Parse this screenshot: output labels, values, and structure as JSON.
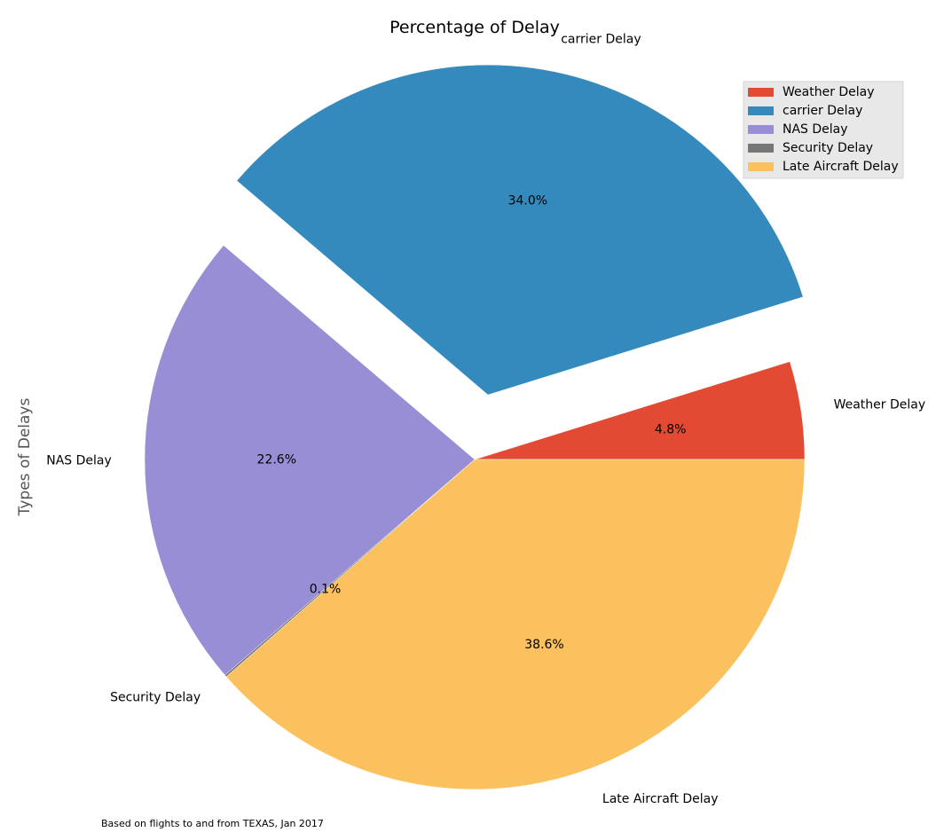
{
  "chart_data": {
    "type": "pie",
    "title": "Percentage of Delay",
    "ylabel": "Types of Delays",
    "footnote": "Based on flights to and from TEXAS, Jan 2017",
    "start_angle_deg": 0,
    "direction": "counterclockwise",
    "legend_position": "top-right",
    "slices": [
      {
        "label": "Weather Delay",
        "value": 4.8,
        "pct_label": "4.8%",
        "color": "#E24A33",
        "explode": false
      },
      {
        "label": "carrier Delay",
        "value": 34.0,
        "pct_label": "34.0%",
        "color": "#348ABD",
        "explode": true
      },
      {
        "label": "NAS Delay",
        "value": 22.6,
        "pct_label": "22.6%",
        "color": "#988ED5",
        "explode": false
      },
      {
        "label": "Security Delay",
        "value": 0.1,
        "pct_label": "0.1%",
        "color": "#777777",
        "explode": false
      },
      {
        "label": "Late Aircraft Delay",
        "value": 38.6,
        "pct_label": "38.6%",
        "color": "#FBC15E",
        "explode": false
      }
    ]
  }
}
